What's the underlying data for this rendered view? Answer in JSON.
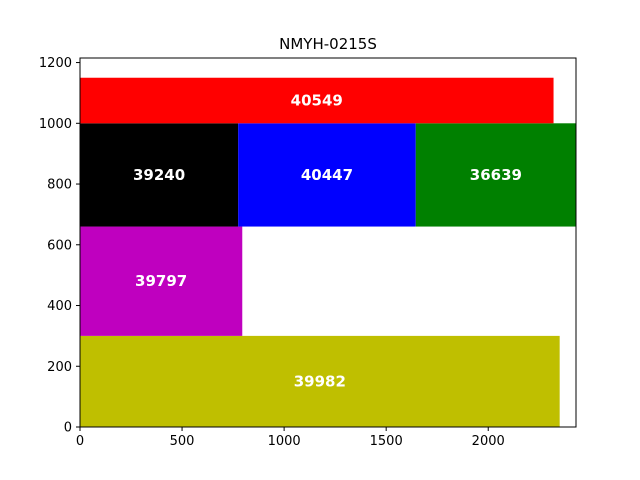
{
  "chart_data": {
    "type": "bar",
    "title": "NMYH-0215S",
    "xlabel": "",
    "ylabel": "",
    "xlim": [
      0,
      2430
    ],
    "ylim": [
      0,
      1215
    ],
    "xticks": [
      0,
      500,
      1000,
      1500,
      2000
    ],
    "yticks": [
      0,
      200,
      400,
      600,
      800,
      1000,
      1200
    ],
    "grid": false,
    "rects": [
      {
        "label": "39982",
        "x0": 0,
        "x1": 2350,
        "y0": 0,
        "y1": 300,
        "color": "#bfbf00"
      },
      {
        "label": "39797",
        "x0": 0,
        "x1": 795,
        "y0": 300,
        "y1": 660,
        "color": "#bf00bf"
      },
      {
        "label": "39240",
        "x0": 0,
        "x1": 775,
        "y0": 660,
        "y1": 1000,
        "color": "#000000"
      },
      {
        "label": "40447",
        "x0": 775,
        "x1": 1645,
        "y0": 660,
        "y1": 1000,
        "color": "#0000ff"
      },
      {
        "label": "36639",
        "x0": 1645,
        "x1": 2430,
        "y0": 660,
        "y1": 1000,
        "color": "#008000"
      },
      {
        "label": "40549",
        "x0": 0,
        "x1": 2320,
        "y0": 1000,
        "y1": 1150,
        "color": "#ff0000"
      }
    ]
  }
}
